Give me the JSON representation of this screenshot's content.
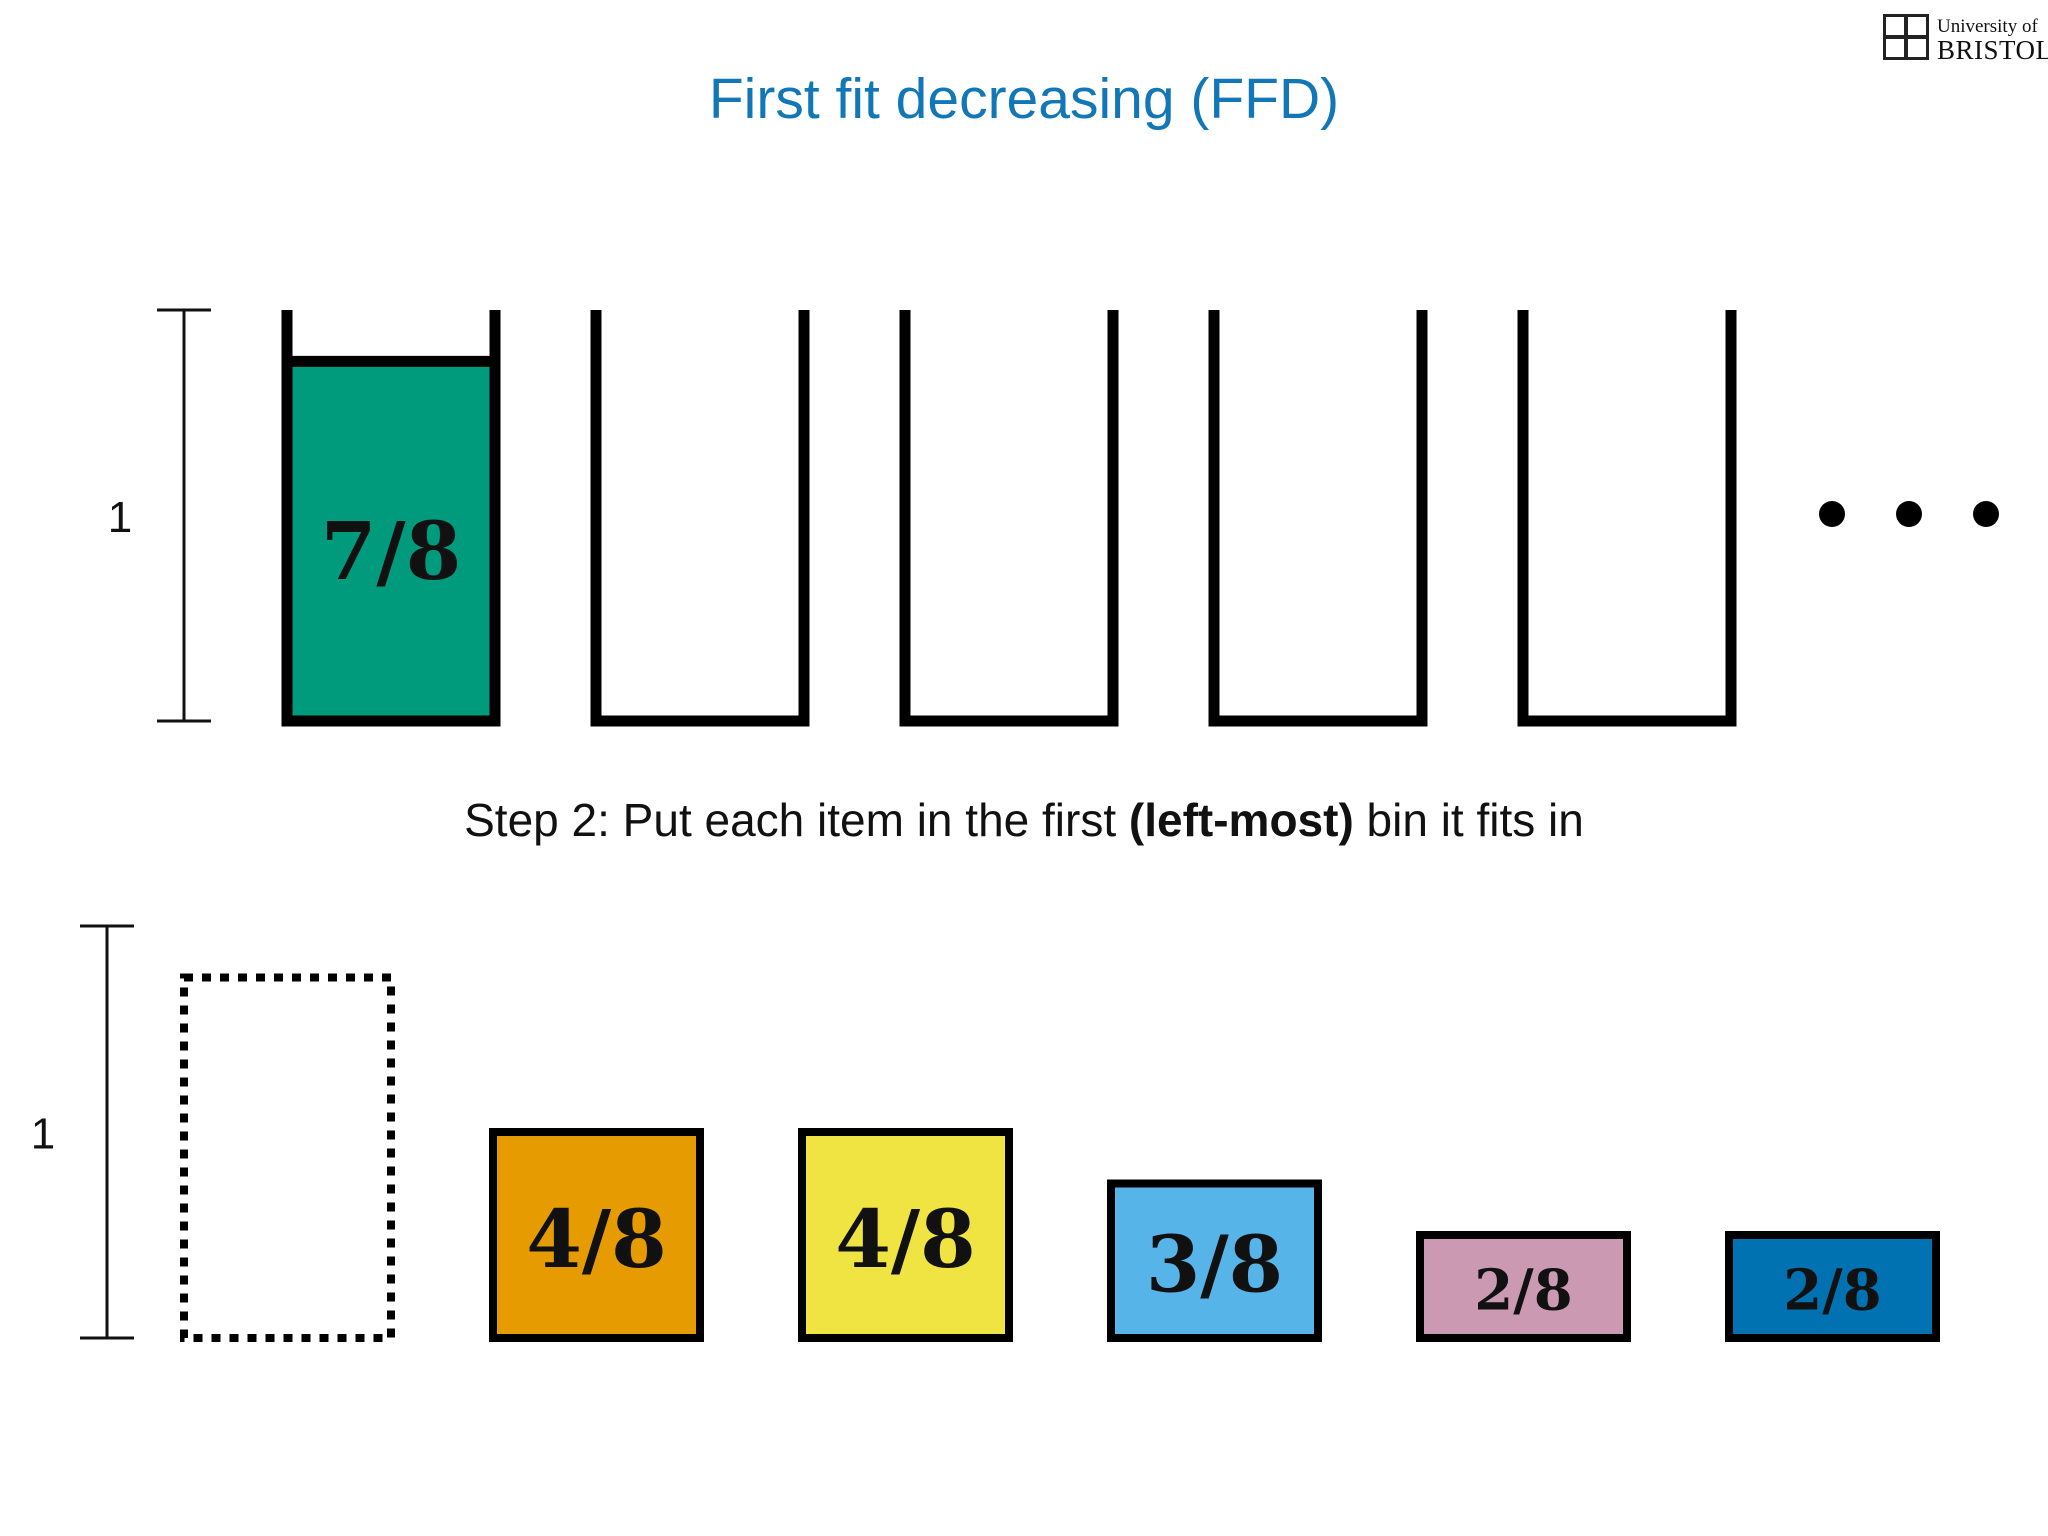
{
  "slide": {
    "title": "First fit decreasing (FFD)",
    "caption_parts": [
      "Step 2: Put each item in the first ",
      "(left-most)",
      " bin it fits in"
    ]
  },
  "logo": {
    "line1": "University of",
    "line2": "BRISTOL"
  },
  "bins": {
    "scale_label": "1",
    "count": 5,
    "capacity": 1,
    "contents": [
      {
        "label": "7/8",
        "size": 0.875,
        "color": "#009a7d"
      }
    ],
    "more_indicator": "ellipsis-dots"
  },
  "items": {
    "scale_label": "1",
    "placeholder": {
      "size": 0.875,
      "style": "dotted-outline"
    },
    "list": [
      {
        "label": "4/8",
        "size": 0.5,
        "color": "#e69c00"
      },
      {
        "label": "4/8",
        "size": 0.5,
        "color": "#f0e442"
      },
      {
        "label": "3/8",
        "size": 0.375,
        "color": "#56b4e9"
      },
      {
        "label": "2/8",
        "size": 0.25,
        "color": "#cc99b3"
      },
      {
        "label": "2/8",
        "size": 0.25,
        "color": "#0072b2"
      }
    ]
  }
}
